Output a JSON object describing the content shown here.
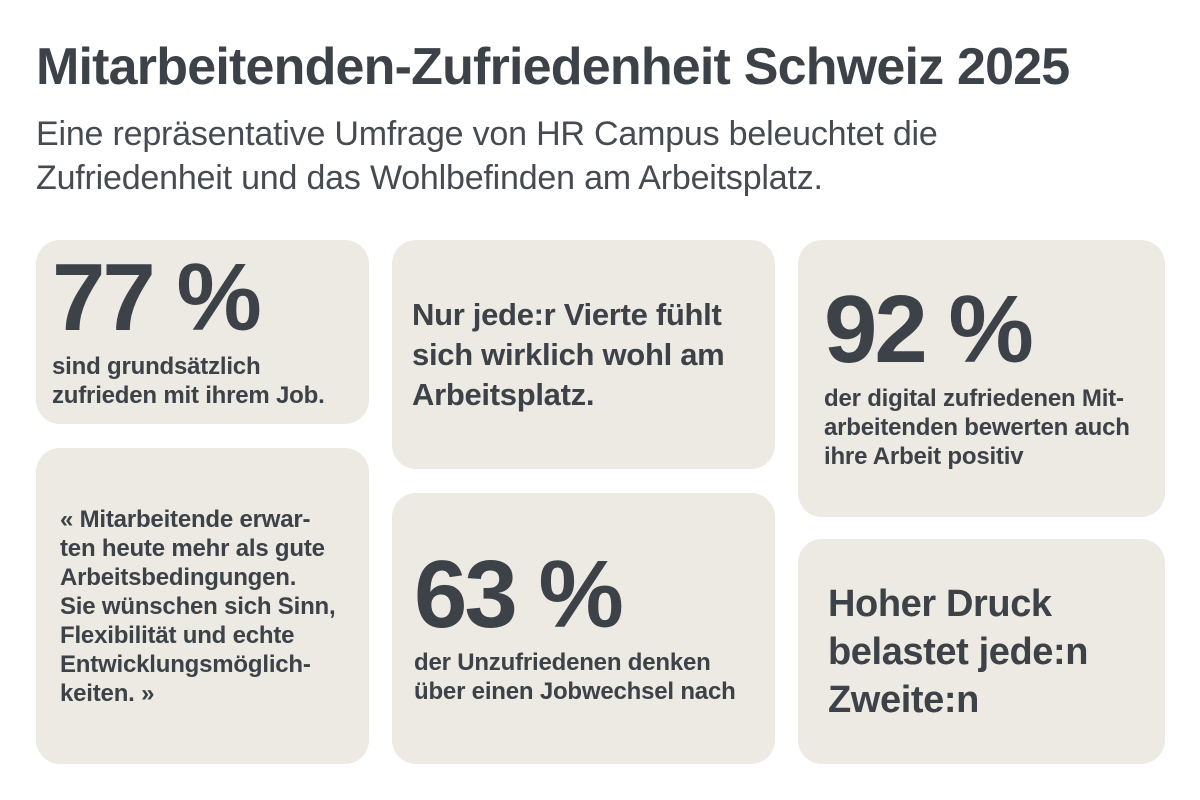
{
  "page": {
    "title": "Mitarbeitenden-Zufriedenheit Schweiz 2025",
    "subtitle": "Eine repräsentative Umfrage von HR Campus beleuchtet die\nZufriedenheit und das Wohlbefinden am Arbeitsplatz."
  },
  "colors": {
    "page_background": "#ffffff",
    "card_background": "#eceae2",
    "text": "#3c4248"
  },
  "cards": [
    {
      "name": "stat-job-satisfaction",
      "value": "77 %",
      "caption": "sind grundsätzlich\nzufrieden mit ihrem Job."
    },
    {
      "name": "statement-wellbeing",
      "text": "Nur jede:r Vierte fühlt\nsich wirklich wohl am\nArbeitsplatz."
    },
    {
      "name": "stat-digital-satisfaction",
      "value": "92 %",
      "caption": "der digital zufriedenen Mit-\narbeitenden bewerten auch\nihre Arbeit positiv"
    },
    {
      "name": "quote-employee-expectations",
      "text": "« Mitarbeitende erwar-\nten heute mehr als gute\nArbeitsbedingungen.\nSie wünschen sich Sinn,\nFlexibilität und echte\nEntwicklungsmöglich-\nkeiten. »"
    },
    {
      "name": "stat-job-change",
      "value": "63 %",
      "caption": "der Unzufriedenen denken\nüber einen Jobwechsel nach"
    },
    {
      "name": "statement-pressure",
      "text": "Hoher Druck\nbelastet jede:n\nZweite:n"
    }
  ]
}
